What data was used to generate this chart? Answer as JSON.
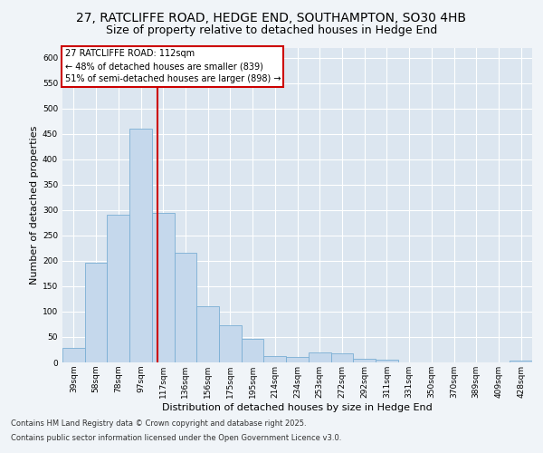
{
  "title_line1": "27, RATCLIFFE ROAD, HEDGE END, SOUTHAMPTON, SO30 4HB",
  "title_line2": "Size of property relative to detached houses in Hedge End",
  "xlabel": "Distribution of detached houses by size in Hedge End",
  "ylabel": "Number of detached properties",
  "categories": [
    "39sqm",
    "58sqm",
    "78sqm",
    "97sqm",
    "117sqm",
    "136sqm",
    "156sqm",
    "175sqm",
    "195sqm",
    "214sqm",
    "234sqm",
    "253sqm",
    "272sqm",
    "292sqm",
    "311sqm",
    "331sqm",
    "350sqm",
    "370sqm",
    "389sqm",
    "409sqm",
    "428sqm"
  ],
  "values": [
    28,
    197,
    290,
    460,
    295,
    215,
    110,
    74,
    46,
    13,
    10,
    19,
    18,
    8,
    5,
    0,
    0,
    0,
    0,
    0,
    3
  ],
  "bar_color": "#c5d8ec",
  "bar_edge_color": "#7aafd4",
  "vline_color": "#cc0000",
  "annotation_text": "27 RATCLIFFE ROAD: 112sqm\n← 48% of detached houses are smaller (839)\n51% of semi-detached houses are larger (898) →",
  "annotation_box_color": "#ffffff",
  "annotation_box_edge": "#cc0000",
  "ylim": [
    0,
    620
  ],
  "yticks": [
    0,
    50,
    100,
    150,
    200,
    250,
    300,
    350,
    400,
    450,
    500,
    550,
    600
  ],
  "plot_bg_color": "#dce6f0",
  "grid_color": "#ffffff",
  "fig_bg_color": "#f0f4f8",
  "footer_line1": "Contains HM Land Registry data © Crown copyright and database right 2025.",
  "footer_line2": "Contains public sector information licensed under the Open Government Licence v3.0.",
  "title_fontsize": 10,
  "subtitle_fontsize": 9,
  "axis_label_fontsize": 8,
  "tick_fontsize": 6.5,
  "annotation_fontsize": 7,
  "footer_fontsize": 6
}
